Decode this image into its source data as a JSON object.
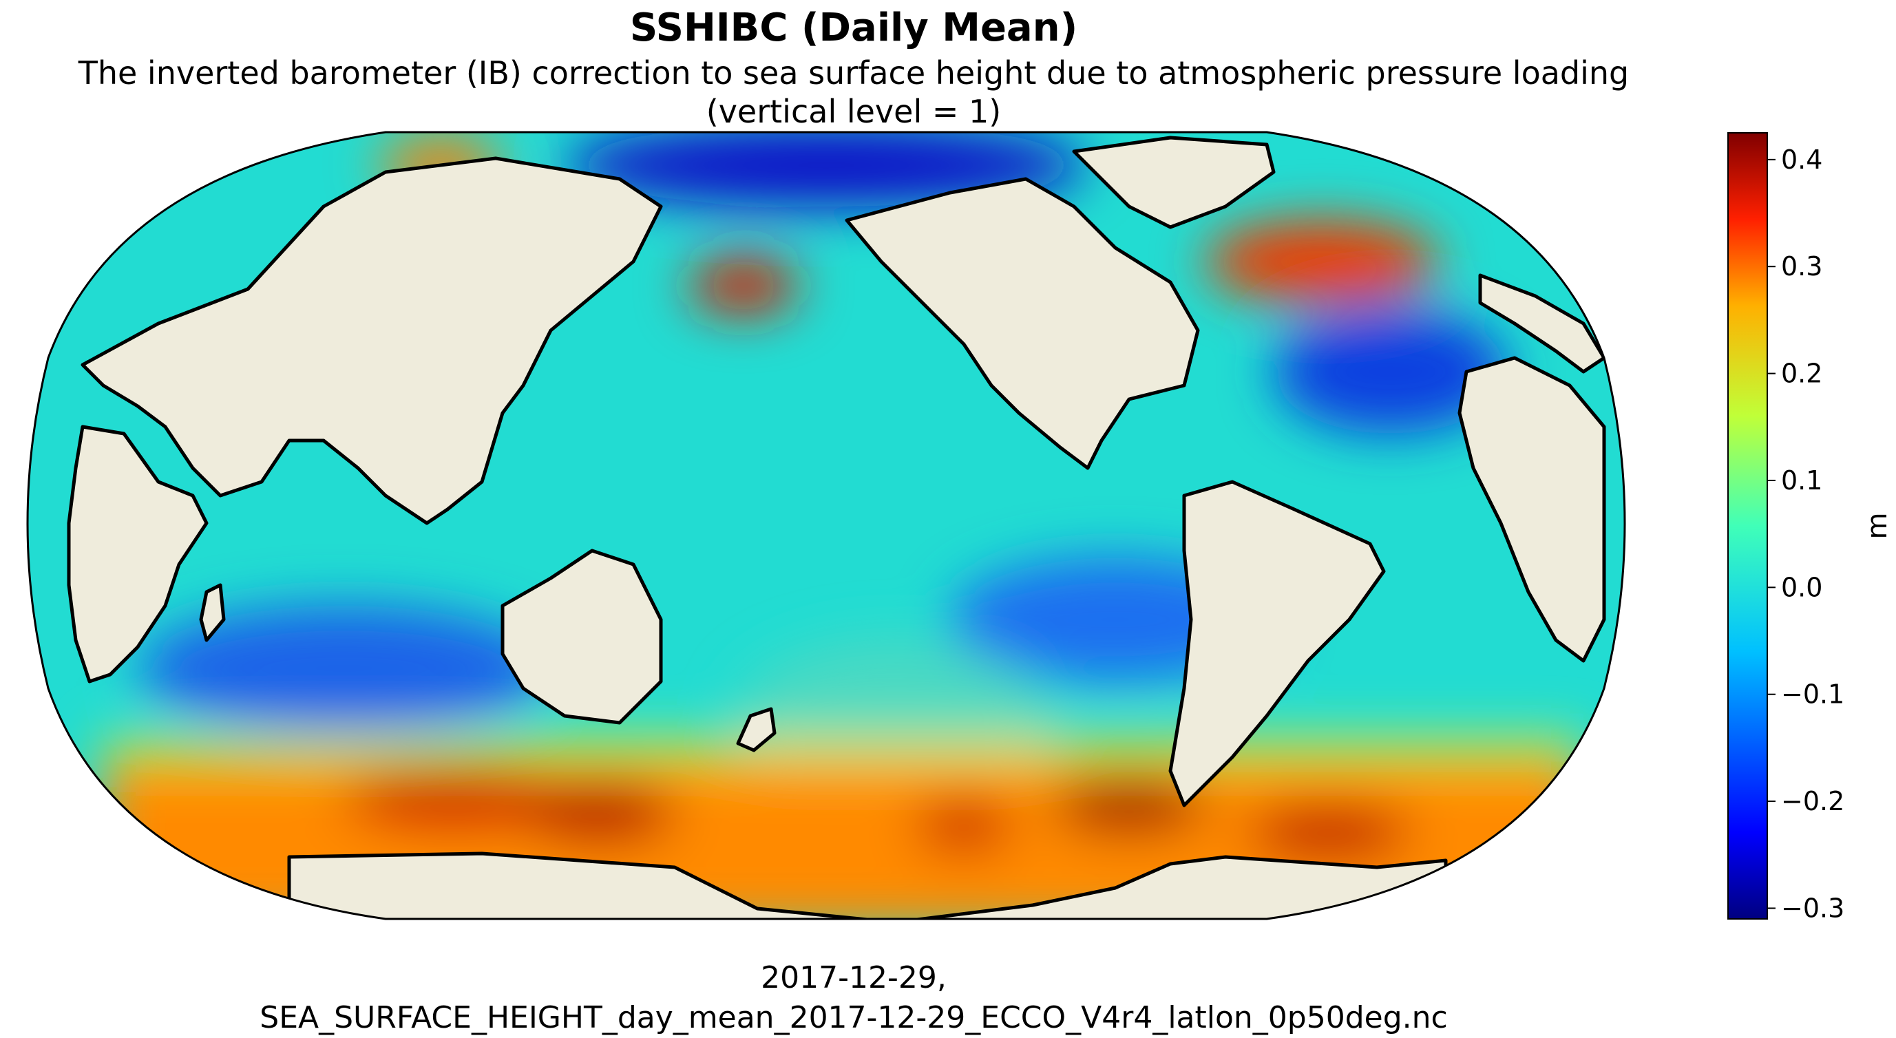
{
  "title": "SSHIBC (Daily Mean)",
  "subtitle_line1": "The inverted barometer (IB) correction to sea surface height due to atmospheric pressure loading",
  "subtitle_line2": "(vertical level = 1)",
  "footer_line1": "2017-12-29,",
  "footer_line2": "SEA_SURFACE_HEIGHT_day_mean_2017-12-29_ECCO_V4r4_latlon_0p50deg.nc",
  "colorbar": {
    "label": "m",
    "min": -0.31,
    "max": 0.425,
    "ticks": [
      "0.4",
      "0.3",
      "0.2",
      "0.1",
      "0.0",
      "−0.1",
      "−0.2",
      "−0.3"
    ],
    "tick_values": [
      0.4,
      0.3,
      0.2,
      0.1,
      0.0,
      -0.1,
      -0.2,
      -0.3
    ],
    "colormap": "jet"
  },
  "map": {
    "projection": "robinson",
    "central_longitude": "180",
    "land_color": "#efecdc",
    "background_ocean_color": "#22ddd0"
  }
}
